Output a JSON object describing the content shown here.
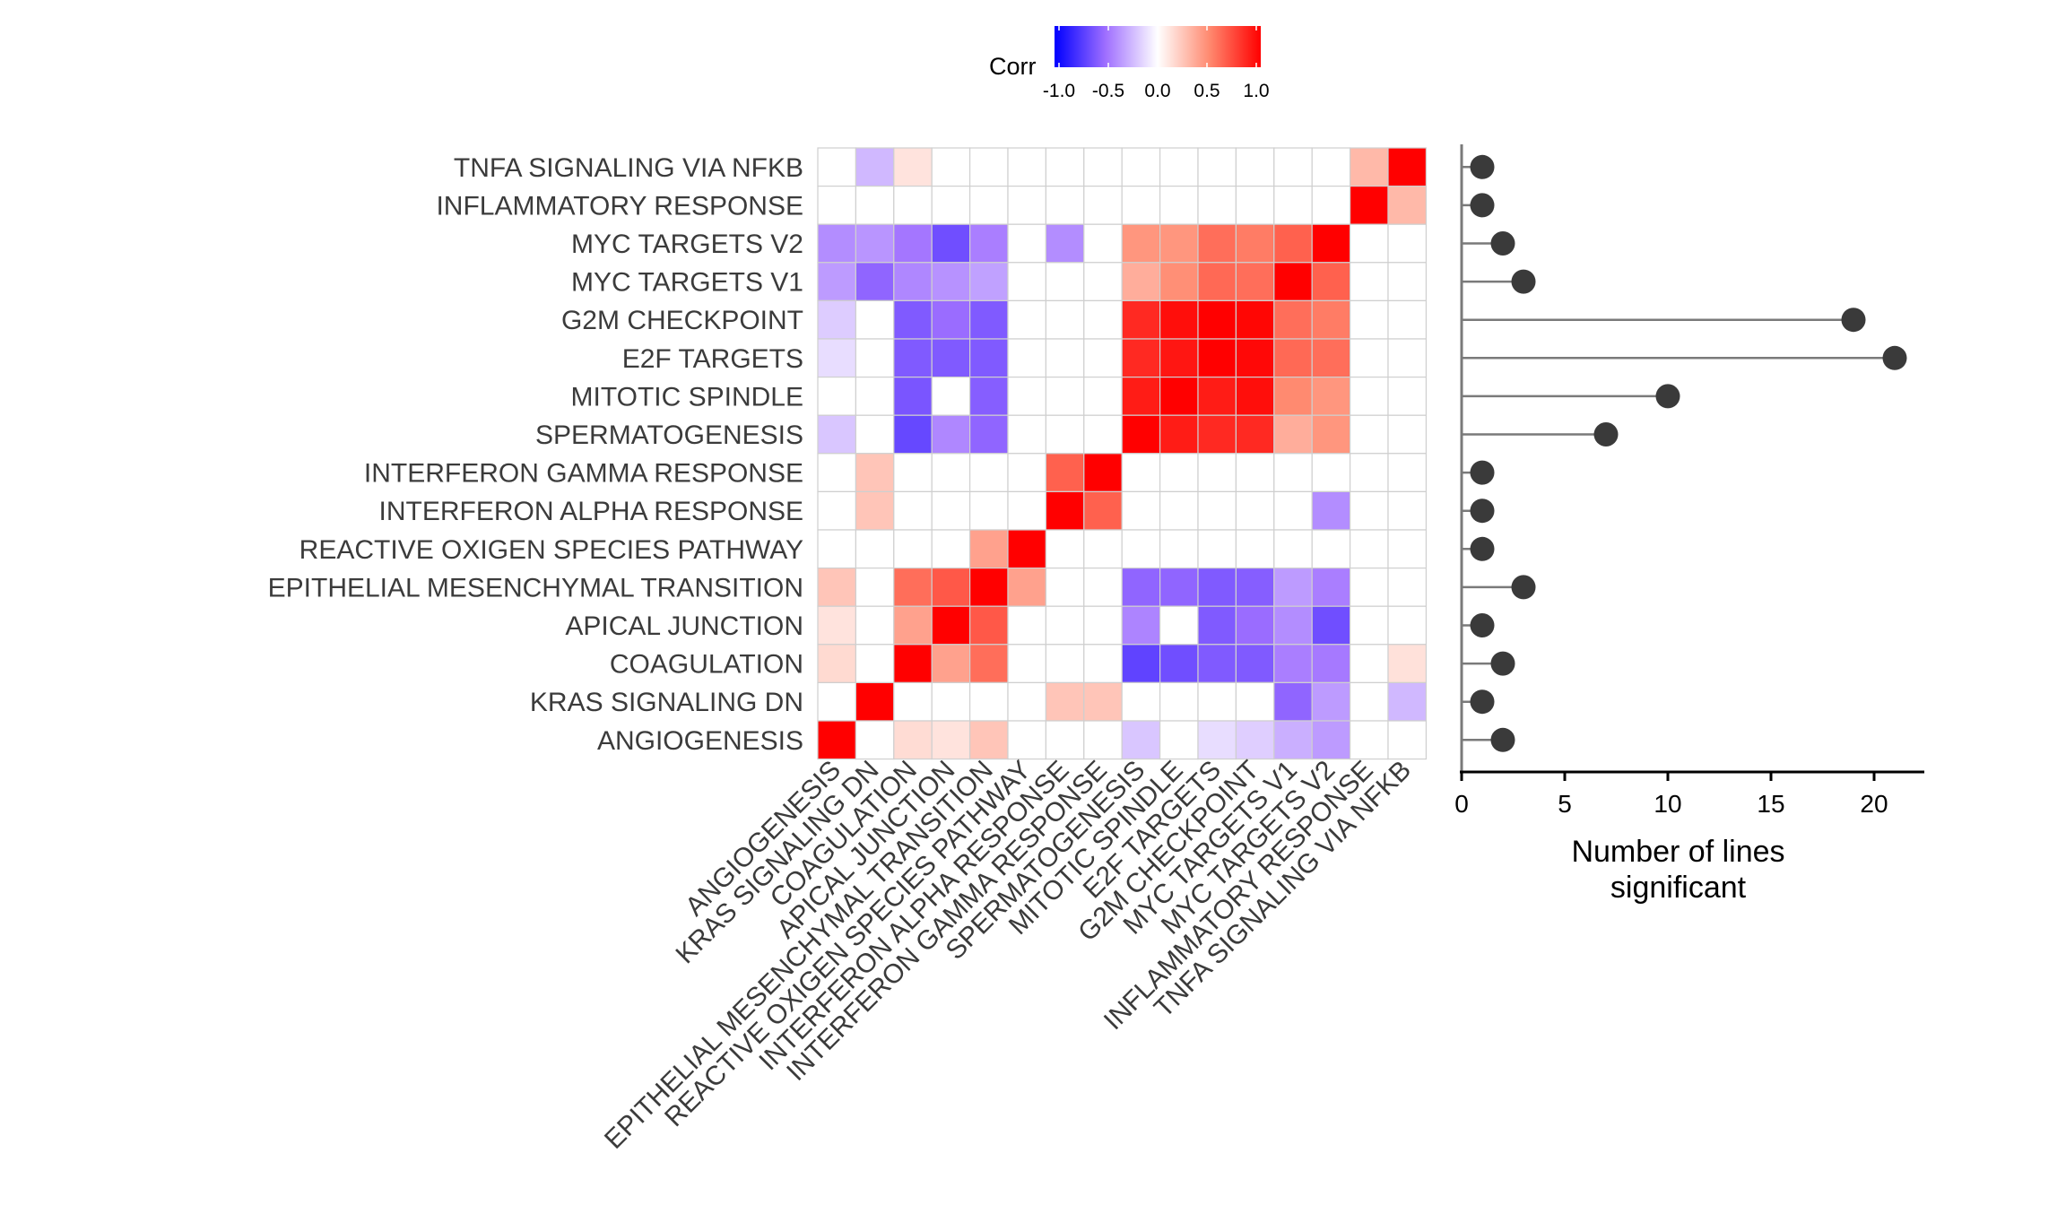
{
  "chart_data": [
    {
      "type": "heatmap",
      "title": "",
      "legend": {
        "title": "Corr",
        "ticks": [
          "-1.0",
          "-0.5",
          "0.0",
          "0.5",
          "1.0"
        ],
        "range": [
          -1,
          1
        ],
        "placement": "top",
        "colors": {
          "low": "#0000FF",
          "mid": "#FFFFFF",
          "high": "#FF0000"
        }
      },
      "rows": [
        "TNFA SIGNALING VIA NFKB",
        "INFLAMMATORY RESPONSE",
        "MYC TARGETS V2",
        "MYC TARGETS V1",
        "G2M CHECKPOINT",
        "E2F TARGETS",
        "MITOTIC SPINDLE",
        "SPERMATOGENESIS",
        "INTERFERON GAMMA RESPONSE",
        "INTERFERON ALPHA RESPONSE",
        "REACTIVE OXIGEN SPECIES PATHWAY",
        "EPITHELIAL MESENCHYMAL TRANSITION",
        "APICAL JUNCTION",
        "COAGULATION",
        "KRAS SIGNALING DN",
        "ANGIOGENESIS"
      ],
      "columns": [
        "ANGIOGENESIS",
        "KRAS SIGNALING DN",
        "COAGULATION",
        "APICAL JUNCTION",
        "EPITHELIAL MESENCHYMAL TRANSITION",
        "REACTIVE OXIGEN SPECIES PATHWAY",
        "INTERFERON ALPHA RESPONSE",
        "INTERFERON GAMMA RESPONSE",
        "SPERMATOGENESIS",
        "MITOTIC SPINDLE",
        "E2F TARGETS",
        "G2M CHECKPOINT",
        "MYC TARGETS V1",
        "MYC TARGETS V2",
        "INFLAMMATORY RESPONSE",
        "TNFA SIGNALING VIA NFKB"
      ],
      "values": [
        [
          0,
          -0.25,
          0.12,
          0,
          0,
          0,
          0,
          0,
          0,
          0,
          0,
          0,
          0,
          0,
          0.3,
          1
        ],
        [
          0,
          0,
          0,
          0,
          0,
          0,
          0,
          0,
          0,
          0,
          0,
          0,
          0,
          0,
          1,
          0.3
        ],
        [
          -0.4,
          -0.37,
          -0.48,
          -0.65,
          -0.45,
          0,
          -0.4,
          0,
          0.45,
          0.45,
          0.6,
          0.55,
          0.65,
          1,
          0,
          0
        ],
        [
          -0.35,
          -0.55,
          -0.42,
          -0.38,
          -0.33,
          0,
          0,
          0,
          0.35,
          0.48,
          0.62,
          0.6,
          1,
          0.65,
          0,
          0
        ],
        [
          -0.18,
          0,
          -0.6,
          -0.52,
          -0.6,
          0,
          0,
          0,
          0.85,
          0.95,
          1,
          0.98,
          0.6,
          0.55,
          0,
          0
        ],
        [
          -0.12,
          0,
          -0.6,
          -0.6,
          -0.6,
          0,
          0,
          0,
          0.85,
          0.92,
          1,
          0.97,
          0.62,
          0.6,
          0,
          0
        ],
        [
          0,
          0,
          -0.62,
          0,
          -0.58,
          0,
          0,
          0,
          0.9,
          1,
          0.9,
          0.95,
          0.5,
          0.45,
          0,
          0
        ],
        [
          -0.2,
          0,
          -0.68,
          -0.42,
          -0.55,
          0,
          0,
          0,
          1,
          0.9,
          0.85,
          0.85,
          0.35,
          0.45,
          0,
          0
        ],
        [
          0,
          0.25,
          0,
          0,
          0,
          0,
          0.65,
          1,
          0,
          0,
          0,
          0,
          0,
          0,
          0,
          0
        ],
        [
          0,
          0.25,
          0,
          0,
          0,
          0,
          1,
          0.65,
          0,
          0,
          0,
          0,
          0,
          -0.4,
          0,
          0
        ],
        [
          0,
          0,
          0,
          0,
          0.4,
          1,
          0,
          0,
          0,
          0,
          0,
          0,
          0,
          0,
          0,
          0
        ],
        [
          0.25,
          0,
          0.6,
          0.68,
          1,
          0.4,
          0,
          0,
          -0.55,
          -0.55,
          -0.6,
          -0.58,
          -0.35,
          -0.45,
          0,
          0
        ],
        [
          0.12,
          0,
          0.4,
          1,
          0.68,
          0,
          0,
          0,
          -0.43,
          0,
          -0.6,
          -0.52,
          -0.4,
          -0.65,
          0,
          0
        ],
        [
          0.16,
          0,
          1,
          0.4,
          0.6,
          0,
          0,
          0,
          -0.7,
          -0.65,
          -0.6,
          -0.6,
          -0.45,
          -0.47,
          0,
          0.13
        ],
        [
          0,
          1,
          0,
          0,
          0,
          0,
          0.25,
          0.25,
          0,
          0,
          0,
          0,
          -0.55,
          -0.35,
          0,
          -0.25
        ],
        [
          1,
          0,
          0.15,
          0.12,
          0.25,
          0,
          0,
          0,
          -0.2,
          0,
          -0.12,
          -0.17,
          -0.28,
          -0.35,
          0,
          0
        ]
      ]
    },
    {
      "type": "lollipop",
      "title": "",
      "xlabel": "Number of lines significant",
      "xlabel_lines": [
        "Number of lines",
        "significant"
      ],
      "ylabel": "",
      "xlim": [
        0,
        22
      ],
      "xticks": [
        0,
        5,
        10,
        15,
        20
      ],
      "categories": [
        "TNFA SIGNALING VIA NFKB",
        "INFLAMMATORY RESPONSE",
        "MYC TARGETS V2",
        "MYC TARGETS V1",
        "G2M CHECKPOINT",
        "E2F TARGETS",
        "MITOTIC SPINDLE",
        "SPERMATOGENESIS",
        "INTERFERON GAMMA RESPONSE",
        "INTERFERON ALPHA RESPONSE",
        "REACTIVE OXIGEN SPECIES PATHWAY",
        "EPITHELIAL MESENCHYMAL TRANSITION",
        "APICAL JUNCTION",
        "COAGULATION",
        "KRAS SIGNALING DN",
        "ANGIOGENESIS"
      ],
      "values": [
        1,
        1,
        2,
        3,
        19,
        21,
        10,
        7,
        1,
        1,
        1,
        3,
        1,
        2,
        1,
        2
      ],
      "colors": {
        "point": "#3a3a3a",
        "stem": "#7a7a7a"
      }
    }
  ]
}
